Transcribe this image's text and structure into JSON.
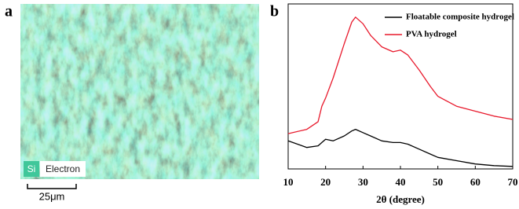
{
  "panel_a": {
    "label": "a",
    "element": "Si",
    "mode": "Electron",
    "scale_bar": "25μm"
  },
  "chart_data": {
    "type": "line",
    "panel_label": "b",
    "x_label": "2θ (degree)",
    "x": [
      10,
      15,
      18,
      19,
      20,
      22,
      25,
      27,
      28,
      30,
      32,
      35,
      38,
      40,
      42,
      45,
      48,
      50,
      55,
      60,
      65,
      70
    ],
    "series": [
      {
        "name": "Floatable composite hydrogel",
        "color": "#000000",
        "values": [
          17,
          13,
          14,
          16,
          18,
          17,
          20,
          23,
          24,
          22,
          20,
          17,
          16,
          16,
          15,
          12,
          9,
          7,
          5,
          3,
          2,
          1.5
        ]
      },
      {
        "name": "PVA hydrogel",
        "color": "#e8192c",
        "values": [
          21.4,
          24,
          28.6,
          38,
          43,
          55,
          76,
          89,
          92,
          88,
          81,
          74,
          71,
          72,
          69,
          60,
          50,
          44,
          38,
          35,
          32,
          30
        ]
      }
    ],
    "xlim": [
      10,
      70
    ],
    "xticks": [
      10,
      20,
      30,
      40,
      50,
      60,
      70
    ],
    "ylim": [
      0,
      100
    ],
    "legend": "upper right"
  }
}
